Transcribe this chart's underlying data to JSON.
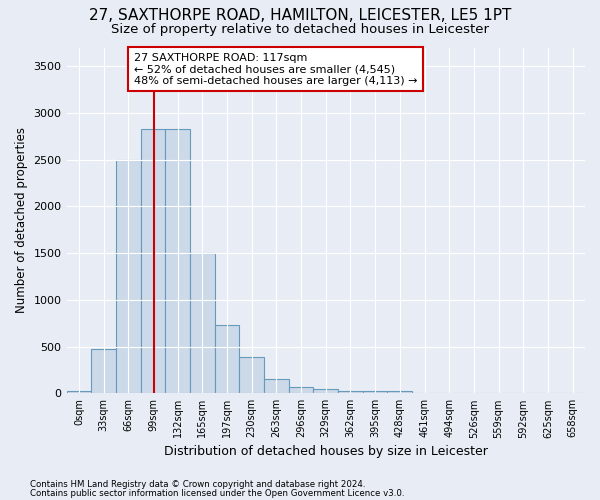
{
  "title1": "27, SAXTHORPE ROAD, HAMILTON, LEICESTER, LE5 1PT",
  "title2": "Size of property relative to detached houses in Leicester",
  "xlabel": "Distribution of detached houses by size in Leicester",
  "ylabel": "Number of detached properties",
  "footnote1": "Contains HM Land Registry data © Crown copyright and database right 2024.",
  "footnote2": "Contains public sector information licensed under the Open Government Licence v3.0.",
  "bar_labels": [
    "0sqm",
    "33sqm",
    "66sqm",
    "99sqm",
    "132sqm",
    "165sqm",
    "197sqm",
    "230sqm",
    "263sqm",
    "296sqm",
    "329sqm",
    "362sqm",
    "395sqm",
    "428sqm",
    "461sqm",
    "494sqm",
    "526sqm",
    "559sqm",
    "592sqm",
    "625sqm",
    "658sqm"
  ],
  "bar_values": [
    20,
    470,
    2500,
    2830,
    2830,
    1500,
    730,
    390,
    155,
    70,
    50,
    30,
    25,
    20,
    0,
    0,
    0,
    0,
    0,
    0,
    0
  ],
  "bar_color": "#ccd9e8",
  "bar_edge_color": "#6699bb",
  "vline_x": 3.55,
  "vline_color": "#cc0000",
  "annotation_text": "27 SAXTHORPE ROAD: 117sqm\n← 52% of detached houses are smaller (4,545)\n48% of semi-detached houses are larger (4,113) →",
  "annotation_box_color": "#cc0000",
  "ylim": [
    0,
    3700
  ],
  "yticks": [
    0,
    500,
    1000,
    1500,
    2000,
    2500,
    3000,
    3500
  ],
  "bg_color": "#e8edf5",
  "plot_bg_color": "#e8edf5",
  "grid_color": "#ffffff",
  "title1_fontsize": 11,
  "title2_fontsize": 9.5,
  "xlabel_fontsize": 9,
  "ylabel_fontsize": 8.5
}
